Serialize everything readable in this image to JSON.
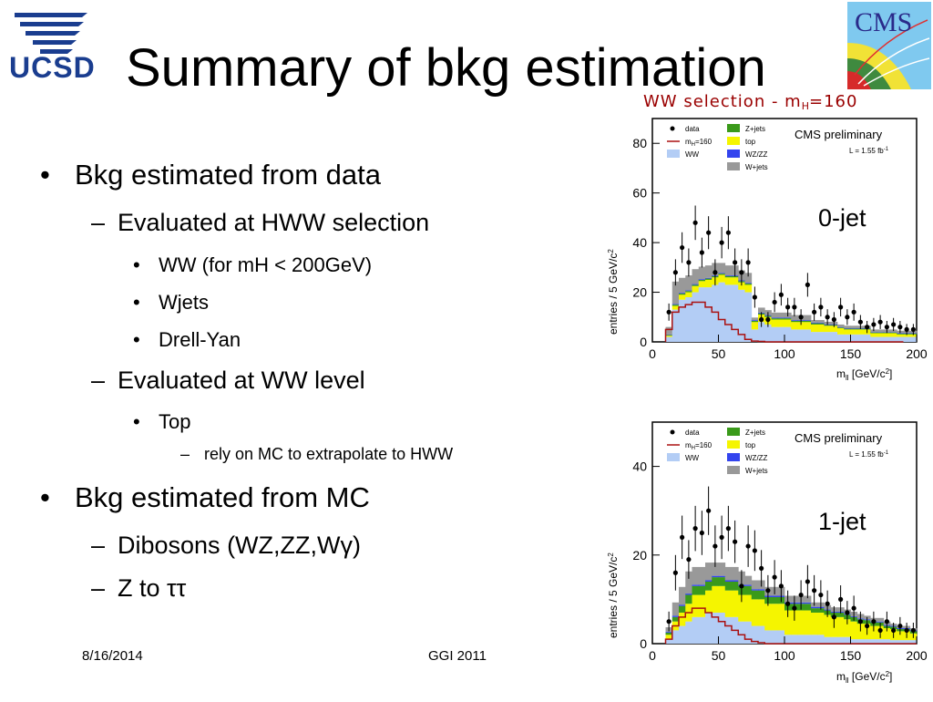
{
  "slide": {
    "title": "Summary of bkg estimation",
    "subtitle_main": "WW selection - m",
    "subtitle_sub": "H",
    "subtitle_tail": "=160",
    "footer_date": "8/16/2014",
    "footer_event": "GGI 2011"
  },
  "logos": {
    "left_text": "UCSD",
    "right_text": "CMS"
  },
  "bullets": [
    {
      "level": 1,
      "marker": "•",
      "text": "Bkg estimated from data"
    },
    {
      "level": 2,
      "marker": "–",
      "text": "Evaluated at HWW selection"
    },
    {
      "level": 3,
      "marker": "•",
      "text": "WW (for mH < 200GeV)"
    },
    {
      "level": 3,
      "marker": "•",
      "text": "Wjets"
    },
    {
      "level": 3,
      "marker": "•",
      "text": "Drell-Yan"
    },
    {
      "level": 2,
      "marker": "–",
      "text": "Evaluated at WW level"
    },
    {
      "level": 3,
      "marker": "•",
      "text": "Top"
    },
    {
      "level": 4,
      "marker": "–",
      "text": "rely on MC to extrapolate to HWW"
    },
    {
      "level": 1,
      "marker": "•",
      "text": "Bkg estimated from MC"
    },
    {
      "level": 2,
      "marker": "–",
      "text": "Dibosons (WZ,ZZ,Wγ)"
    },
    {
      "level": 2,
      "marker": "–",
      "text": "Z to ττ"
    }
  ],
  "colors": {
    "ww": "#b3cdf5",
    "top": "#f5f500",
    "zjets": "#3a9a1a",
    "wz": "#3344ee",
    "wjets": "#999999",
    "higgs": "#aa1111",
    "data": "#000000"
  },
  "chart_data": [
    {
      "type": "bar",
      "annotation": "0-jet",
      "header": "CMS preliminary",
      "lumi": "L = 1.55 fb",
      "lumi_sup": "-1",
      "ylabel": "entries / 5 GeV/c",
      "ylabel_sup": "2",
      "xlabel": "m",
      "xlabel_sub": "ll",
      "xlabel_unit": " [GeV/c",
      "xlabel_sup": "2",
      "xlabel_tail": "]",
      "xlim": [
        0,
        200
      ],
      "ylim": [
        0,
        90
      ],
      "xticks": [
        "0",
        "50",
        "100",
        "150",
        "200"
      ],
      "yticks": [
        "0",
        "20",
        "40",
        "60",
        "80"
      ],
      "legend": [
        {
          "label": "data",
          "kind": "data"
        },
        {
          "label": "Z+jets",
          "kind": "zjets"
        },
        {
          "label": "m",
          "sub": "H",
          "tail": "=160",
          "kind": "higgs"
        },
        {
          "label": "top",
          "kind": "top"
        },
        {
          "label": "WW",
          "kind": "ww"
        },
        {
          "label": "WZ/ZZ",
          "kind": "wz"
        },
        {
          "label": "W+jets",
          "kind": "wjets"
        }
      ],
      "bin_low": [
        10,
        15,
        20,
        25,
        30,
        35,
        40,
        45,
        50,
        55,
        60,
        65,
        70,
        75,
        80,
        85,
        90,
        95,
        100,
        105,
        110,
        115,
        120,
        125,
        130,
        135,
        140,
        145,
        150,
        155,
        160,
        165,
        170,
        175,
        180,
        185,
        190,
        195
      ],
      "ww": [
        2,
        13,
        17,
        18,
        20,
        22,
        22,
        23,
        24,
        23,
        23,
        21,
        20,
        5,
        8,
        7,
        6,
        6,
        6,
        5,
        5,
        5,
        4,
        4,
        4,
        4,
        3,
        3,
        3,
        3,
        3,
        2,
        2,
        2,
        2,
        2,
        2,
        2
      ],
      "top": [
        0.5,
        1.5,
        2,
        2,
        2.5,
        2.5,
        3,
        3,
        3,
        3,
        3,
        3,
        3,
        3,
        3,
        3,
        3,
        3,
        3,
        3,
        3,
        3,
        3,
        3,
        2.5,
        2.5,
        2.5,
        2,
        2,
        2,
        2,
        1.5,
        1.5,
        1.5,
        1.5,
        1,
        1,
        1
      ],
      "zjets": [
        0.3,
        0.5,
        0.5,
        0.5,
        0.5,
        0.5,
        0.5,
        0.5,
        0.5,
        0.5,
        0.5,
        0.5,
        0.5,
        0.5,
        0.5,
        0.5,
        0.5,
        0.5,
        0.5,
        0.5,
        0.5,
        0.5,
        0.5,
        0.5,
        0.3,
        0.3,
        0.3,
        0.3,
        0.3,
        0.3,
        0.3,
        0.3,
        0.3,
        0.3,
        0.3,
        0.3,
        0.3,
        0.3
      ],
      "wz": [
        0.2,
        0.3,
        0.3,
        0.3,
        0.3,
        0.3,
        0.3,
        0.3,
        0.3,
        0.3,
        0.3,
        0.3,
        0.3,
        0.3,
        0.3,
        0.3,
        0.3,
        0.3,
        0.3,
        0.3,
        0.3,
        0.3,
        0.3,
        0.3,
        0.3,
        0.3,
        0.2,
        0.2,
        0.2,
        0.2,
        0.2,
        0.2,
        0.2,
        0.2,
        0.2,
        0.2,
        0.2,
        0.2
      ],
      "wjets": [
        3,
        9,
        6,
        6,
        6,
        5,
        5,
        5,
        4,
        4,
        4,
        4,
        4,
        1,
        2,
        2,
        2,
        2,
        2,
        2,
        2,
        2,
        1,
        1,
        1,
        1,
        1,
        1,
        1,
        1,
        1,
        1,
        1,
        1,
        1,
        1,
        1,
        1
      ],
      "higgs": [
        5,
        12,
        14,
        15,
        16,
        16,
        14,
        12,
        9,
        7,
        5,
        3,
        1,
        0.3,
        0.2,
        0,
        0,
        0,
        0,
        0,
        0,
        0,
        0,
        0,
        0,
        0,
        0,
        0,
        0,
        0,
        0,
        0,
        0,
        0,
        0,
        0
      ],
      "data_x": [
        12.5,
        17.5,
        22.5,
        27.5,
        32.5,
        37.5,
        42.5,
        47.5,
        52.5,
        57.5,
        62.5,
        67.5,
        72.5,
        77.5,
        82.5,
        87.5,
        92.5,
        97.5,
        102.5,
        107.5,
        112.5,
        117.5,
        122.5,
        127.5,
        132.5,
        137.5,
        142.5,
        147.5,
        152.5,
        157.5,
        162.5,
        167.5,
        172.5,
        177.5,
        182.5,
        187.5,
        192.5,
        197.5
      ],
      "data_y": [
        12,
        28,
        38,
        32,
        48,
        36,
        44,
        28,
        40,
        44,
        32,
        28,
        32,
        18,
        9,
        9,
        16,
        19,
        14,
        14,
        10,
        23,
        12,
        14,
        10,
        9,
        14,
        10,
        12,
        8,
        6,
        7,
        8,
        6,
        7,
        6,
        5,
        5
      ]
    },
    {
      "type": "bar",
      "annotation": "1-jet",
      "header": "CMS preliminary",
      "lumi": "L = 1.55 fb",
      "lumi_sup": "-1",
      "ylabel": "entries / 5 GeV/c",
      "ylabel_sup": "2",
      "xlabel": "m",
      "xlabel_sub": "ll",
      "xlabel_unit": " [GeV/c",
      "xlabel_sup": "2",
      "xlabel_tail": "]",
      "xlim": [
        0,
        200
      ],
      "ylim": [
        0,
        50
      ],
      "xticks": [
        "0",
        "50",
        "100",
        "150",
        "200"
      ],
      "yticks": [
        "0",
        "20",
        "40"
      ],
      "legend": [
        {
          "label": "data",
          "kind": "data"
        },
        {
          "label": "Z+jets",
          "kind": "zjets"
        },
        {
          "label": "m",
          "sub": "H",
          "tail": "=160",
          "kind": "higgs"
        },
        {
          "label": "top",
          "kind": "top"
        },
        {
          "label": "WW",
          "kind": "ww"
        },
        {
          "label": "WZ/ZZ",
          "kind": "wz"
        },
        {
          "label": "W+jets",
          "kind": "wjets"
        }
      ],
      "bin_low": [
        10,
        15,
        20,
        25,
        30,
        35,
        40,
        45,
        50,
        55,
        60,
        65,
        70,
        75,
        80,
        85,
        90,
        95,
        100,
        105,
        110,
        115,
        120,
        125,
        130,
        135,
        140,
        145,
        150,
        155,
        160,
        165,
        170,
        175,
        180,
        185,
        190,
        195
      ],
      "ww": [
        1,
        3,
        4,
        5,
        6,
        6,
        7,
        7,
        7,
        6,
        6,
        5,
        5,
        4,
        4,
        3,
        3,
        3,
        2,
        2,
        2,
        2,
        2,
        2,
        1.5,
        1.5,
        1.5,
        1.5,
        1,
        1,
        1,
        1,
        1,
        1,
        0.8,
        0.8,
        0.8,
        0.8
      ],
      "top": [
        1,
        2,
        3,
        4,
        5,
        5,
        5,
        6,
        6,
        6,
        6,
        6,
        6,
        6,
        6,
        6,
        6,
        6,
        5.5,
        5.5,
        5.5,
        5.5,
        5,
        5,
        5,
        4.5,
        4.5,
        4,
        4,
        3.5,
        3.5,
        3,
        3,
        2.5,
        2.5,
        2,
        2,
        1.5
      ],
      "zjets": [
        0.5,
        1,
        1.5,
        2,
        2,
        2,
        2,
        2,
        2,
        2,
        2,
        2,
        2,
        2,
        2,
        1.5,
        1.5,
        1.5,
        1.5,
        1.5,
        1.5,
        1.5,
        1,
        1,
        1,
        1,
        1,
        1,
        1,
        1,
        0.8,
        0.8,
        0.8,
        0.5,
        0.5,
        0.5,
        0.5,
        0.5
      ],
      "wz": [
        0.2,
        0.3,
        0.3,
        0.3,
        0.3,
        0.3,
        0.3,
        0.3,
        0.3,
        0.3,
        0.3,
        0.3,
        0.3,
        0.3,
        0.3,
        0.3,
        0.3,
        0.3,
        0.3,
        0.3,
        0.3,
        0.3,
        0.3,
        0.3,
        0.2,
        0.2,
        0.2,
        0.2,
        0.2,
        0.2,
        0.2,
        0.2,
        0.2,
        0.2,
        0.2,
        0.2,
        0.2,
        0.2
      ],
      "wjets": [
        1,
        3,
        4,
        5,
        4,
        4,
        4,
        3,
        3,
        3,
        3,
        3,
        2,
        2,
        2,
        2,
        2,
        2,
        1.5,
        1.5,
        1.5,
        1.5,
        1,
        1,
        1,
        1,
        1,
        1,
        1,
        1,
        0.8,
        0.8,
        0.8,
        0.8,
        0.5,
        0.5,
        0.5,
        0.5
      ],
      "higgs": [
        1,
        4,
        6,
        7,
        8,
        8,
        7,
        6,
        5,
        4,
        3,
        2,
        1,
        0.5,
        0.2,
        0,
        0,
        0,
        0,
        0,
        0,
        0,
        0,
        0,
        0,
        0,
        0,
        0,
        0,
        0,
        0,
        0,
        0,
        0,
        0,
        0,
        0,
        0
      ],
      "data_x": [
        12.5,
        17.5,
        22.5,
        27.5,
        32.5,
        37.5,
        42.5,
        47.5,
        52.5,
        57.5,
        62.5,
        67.5,
        72.5,
        77.5,
        82.5,
        87.5,
        92.5,
        97.5,
        102.5,
        107.5,
        112.5,
        117.5,
        122.5,
        127.5,
        132.5,
        137.5,
        142.5,
        147.5,
        152.5,
        157.5,
        162.5,
        167.5,
        172.5,
        177.5,
        182.5,
        187.5,
        192.5,
        197.5
      ],
      "data_y": [
        5,
        16,
        24,
        19,
        26,
        25,
        30,
        22,
        24,
        26,
        23,
        13,
        22,
        21,
        17,
        12,
        15,
        13,
        9,
        8,
        11,
        14,
        12,
        11,
        9,
        6,
        10,
        7,
        8,
        5,
        4,
        5,
        3,
        5,
        3,
        4,
        3,
        3
      ]
    }
  ]
}
